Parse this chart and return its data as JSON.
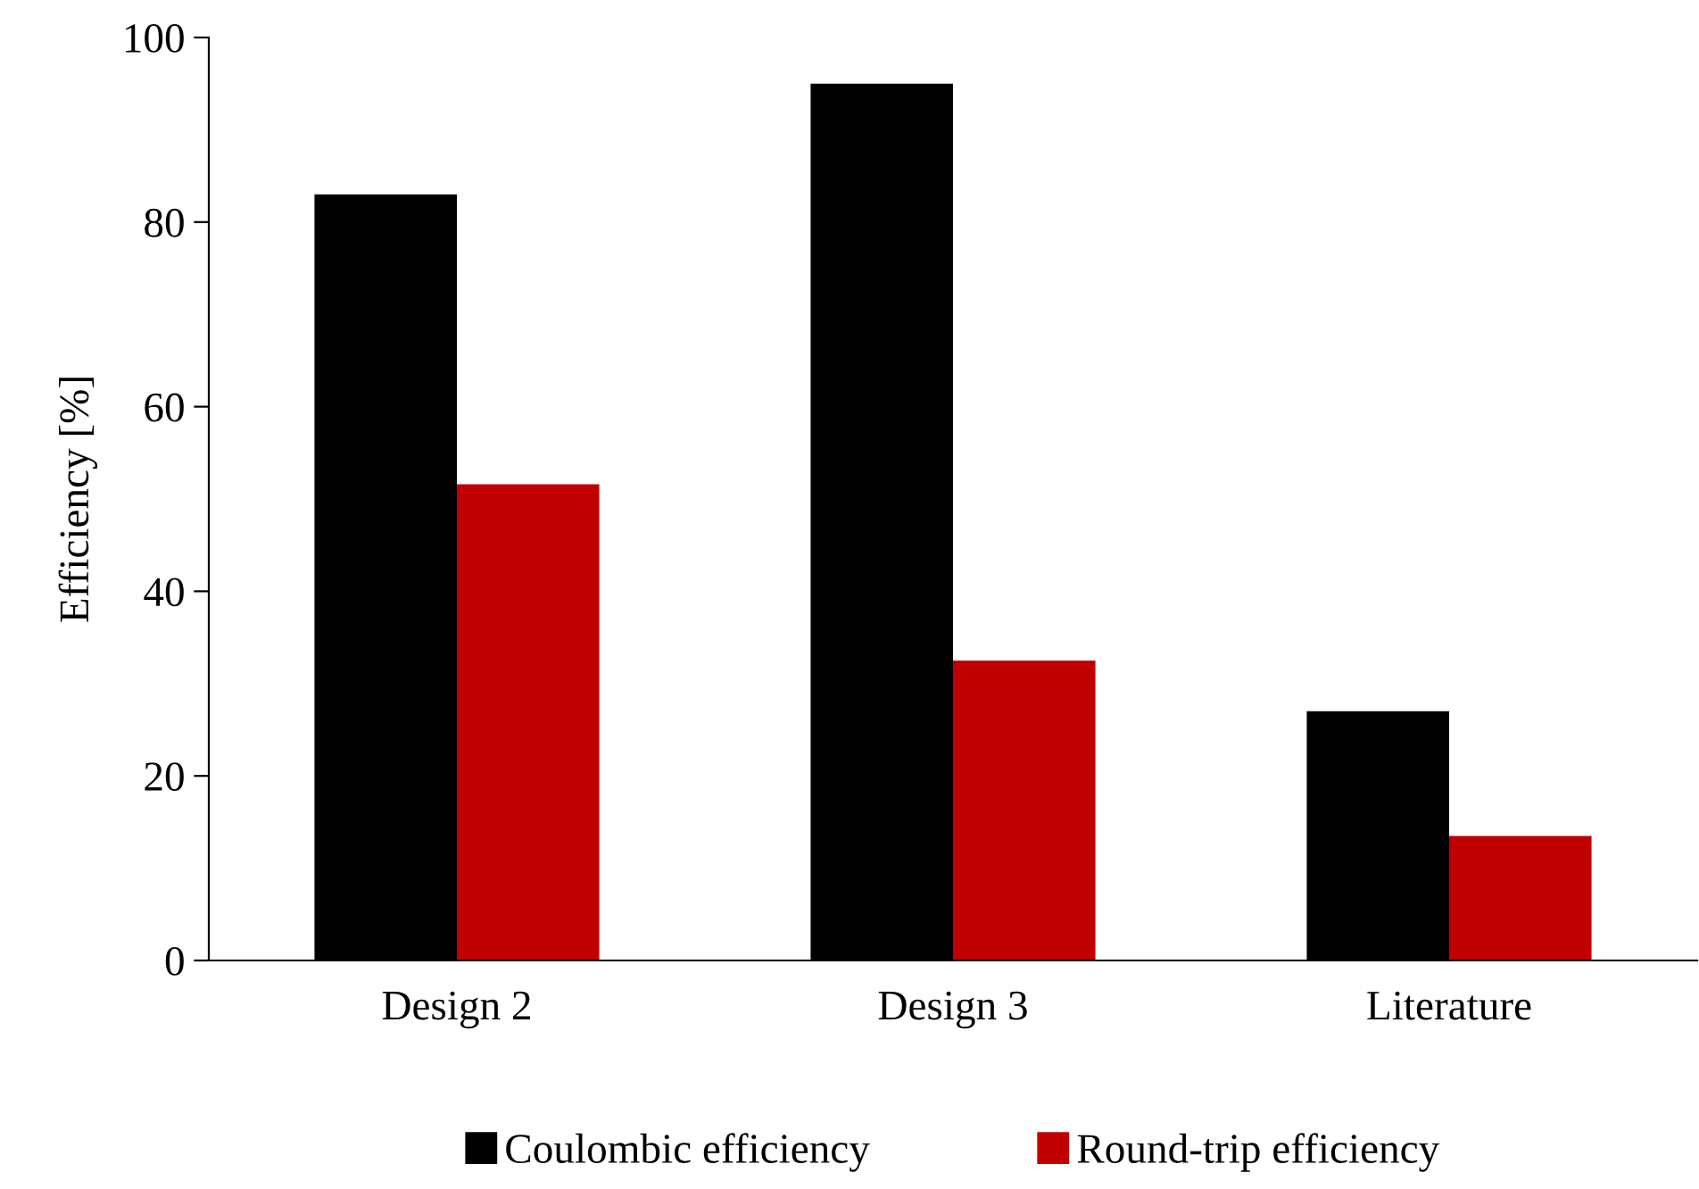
{
  "chart_data": {
    "type": "bar",
    "ylabel": "Efficiency [%]",
    "categories": [
      "Design 2",
      "Design 3",
      "Literature"
    ],
    "series": [
      {
        "name": "Coulombic efficiency",
        "color": "#000000",
        "values": [
          83,
          95,
          27
        ]
      },
      {
        "name": "Round-trip efficiency",
        "color": "#c00000",
        "values": [
          51.6,
          32.5,
          13.5
        ]
      }
    ],
    "ylim": [
      0,
      100
    ],
    "yticks": [
      0,
      20,
      40,
      60,
      80,
      100
    ],
    "grid": false,
    "legend": "bottom"
  }
}
